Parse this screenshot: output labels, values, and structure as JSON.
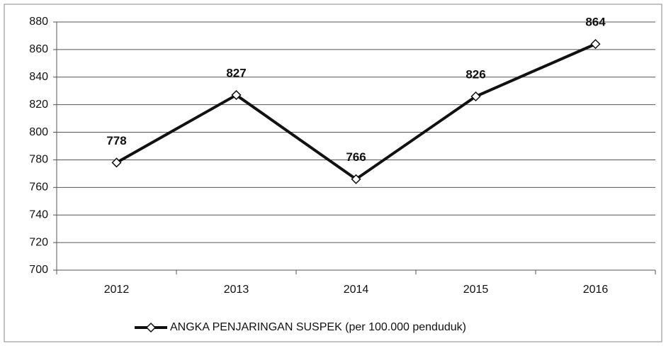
{
  "chart_data": {
    "type": "line",
    "categories": [
      "2012",
      "2013",
      "2014",
      "2015",
      "2016"
    ],
    "series": [
      {
        "name": "ANGKA PENJARINGAN SUSPEK (per 100.000 penduduk)",
        "color": "#111111",
        "values": [
          778,
          827,
          766,
          826,
          864
        ]
      }
    ],
    "ylim": [
      700,
      880
    ],
    "yticks": [
      700,
      720,
      740,
      760,
      780,
      800,
      820,
      840,
      860,
      880
    ],
    "grid": true,
    "legend": "bottom"
  }
}
